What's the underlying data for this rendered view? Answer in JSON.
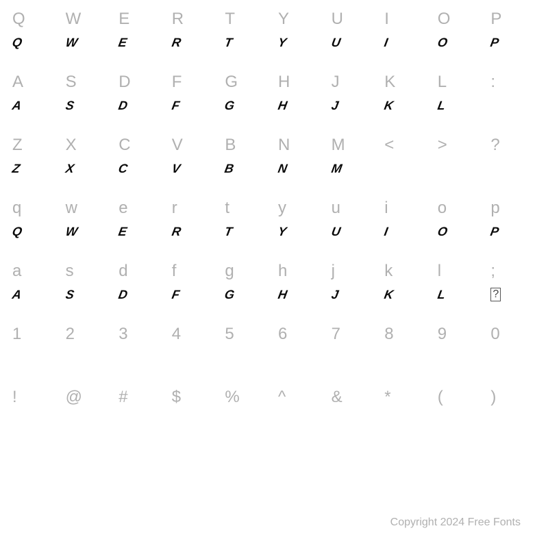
{
  "chart": {
    "type": "character-map",
    "background_color": "#ffffff",
    "reference_color": "#b0b0b0",
    "glyph_color": "#0a0a0a",
    "reference_fontsize": 24,
    "glyph_fontsize": 18,
    "columns": 10,
    "row_pairs": [
      {
        "reference": [
          "Q",
          "W",
          "E",
          "R",
          "T",
          "Y",
          "U",
          "I",
          "O",
          "P"
        ],
        "glyph": [
          "Q",
          "W",
          "E",
          "R",
          "T",
          "Y",
          "U",
          "I",
          "O",
          "P"
        ]
      },
      {
        "reference": [
          "A",
          "S",
          "D",
          "F",
          "G",
          "H",
          "J",
          "K",
          "L",
          ":"
        ],
        "glyph": [
          "A",
          "S",
          "D",
          "F",
          "G",
          "H",
          "J",
          "K",
          "L",
          ""
        ]
      },
      {
        "reference": [
          "Z",
          "X",
          "C",
          "V",
          "B",
          "N",
          "M",
          "<",
          ">",
          "?"
        ],
        "glyph": [
          "Z",
          "X",
          "C",
          "V",
          "B",
          "N",
          "M",
          "",
          "",
          ""
        ]
      },
      {
        "reference": [
          "q",
          "w",
          "e",
          "r",
          "t",
          "y",
          "u",
          "i",
          "o",
          "p"
        ],
        "glyph": [
          "Q",
          "W",
          "E",
          "R",
          "T",
          "Y",
          "U",
          "I",
          "O",
          "P"
        ]
      },
      {
        "reference": [
          "a",
          "s",
          "d",
          "f",
          "g",
          "h",
          "j",
          "k",
          "l",
          ";"
        ],
        "glyph": [
          "A",
          "S",
          "D",
          "F",
          "G",
          "H",
          "J",
          "K",
          "L",
          "?"
        ]
      },
      {
        "reference": [
          "1",
          "2",
          "3",
          "4",
          "5",
          "6",
          "7",
          "8",
          "9",
          "0"
        ],
        "glyph": [
          "",
          "",
          "",
          "",
          "",
          "",
          "",
          "",
          "",
          ""
        ]
      },
      {
        "reference": [
          "!",
          "@",
          "#",
          "$",
          "%",
          "^",
          "&",
          "*",
          "(",
          ")"
        ],
        "glyph": [
          "",
          "",
          "",
          "",
          "",
          "",
          "",
          "",
          "",
          ""
        ]
      }
    ],
    "glyph_box_indices": [
      [
        4,
        9
      ]
    ]
  },
  "footer": {
    "text": "Copyright 2024 Free Fonts"
  }
}
